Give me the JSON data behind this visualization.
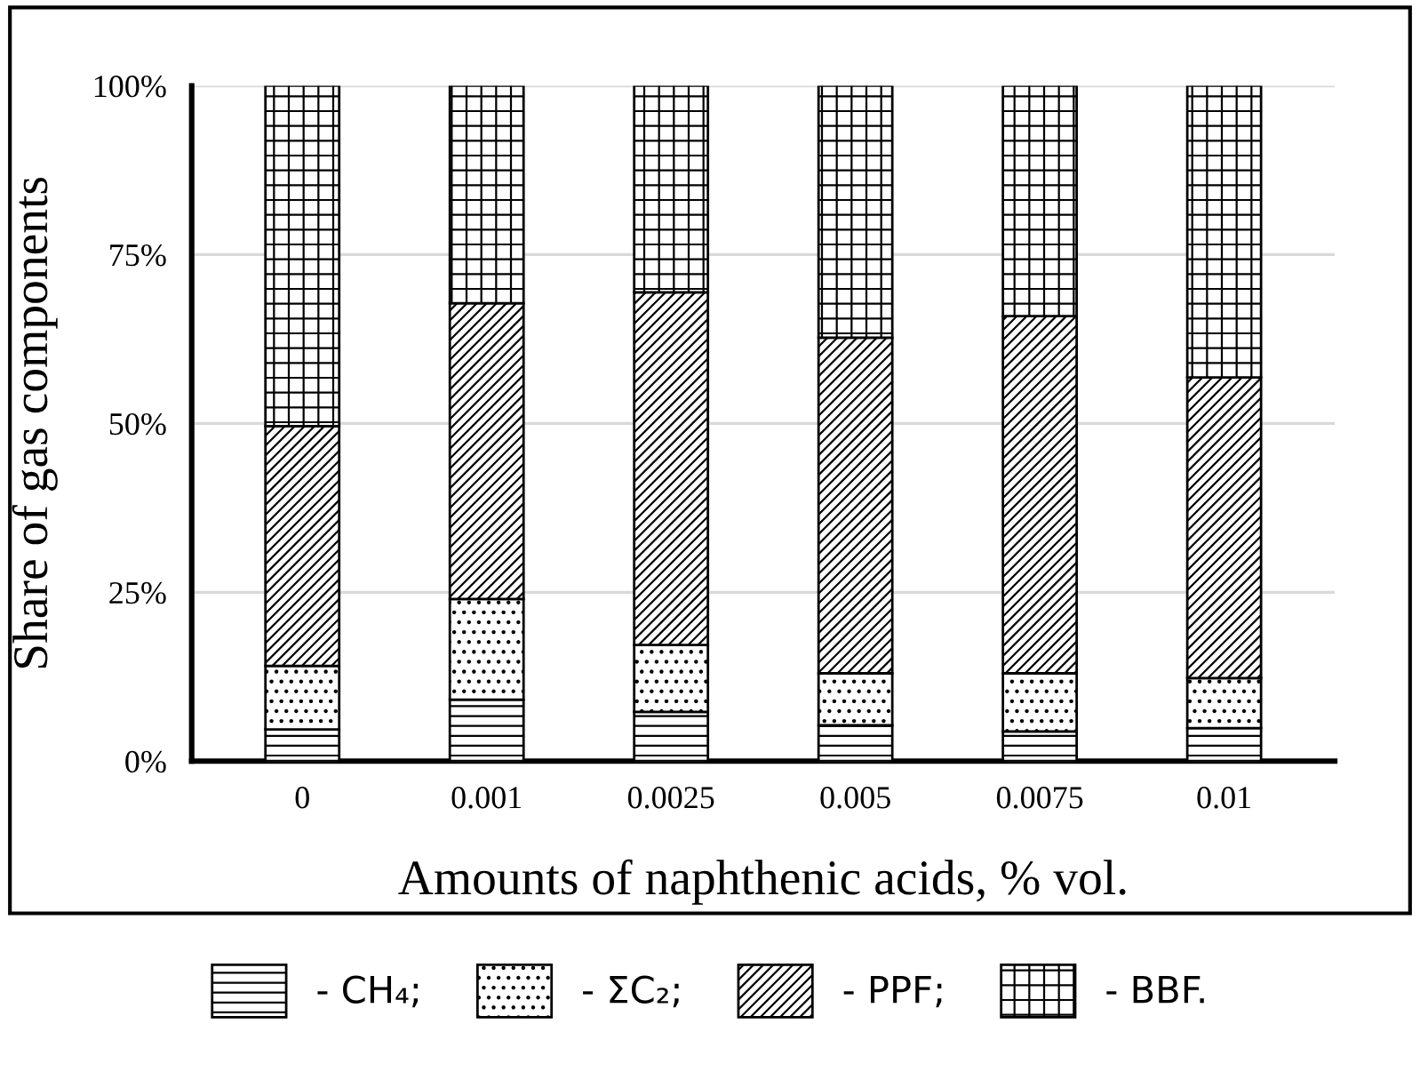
{
  "chart_data": {
    "type": "bar",
    "stacked": true,
    "xlabel": "Amounts of naphthenic acids, % vol.",
    "ylabel": "Share of gas components",
    "categories": [
      "0",
      "0.001",
      "0.0025",
      "0.005",
      "0.0075",
      "0.01"
    ],
    "series": [
      {
        "name": "- CH₄;",
        "color": "#000000",
        "values": [
          4.7,
          9.1,
          7.3,
          5.3,
          4.4,
          4.9
        ]
      },
      {
        "name": "- ΣC₂;",
        "color": "#000000",
        "values": [
          9.4,
          14.9,
          9.9,
          7.7,
          8.6,
          7.4
        ]
      },
      {
        "name": "- PPF;",
        "color": "#000000",
        "values": [
          35.5,
          43.8,
          52.2,
          49.7,
          52.9,
          44.5
        ]
      },
      {
        "name": "- BBF.",
        "color": "#000000",
        "values": [
          50.4,
          32.2,
          30.6,
          37.3,
          34.1,
          43.2
        ]
      }
    ],
    "ylim": [
      0,
      100
    ],
    "yticks": [
      {
        "value": 0,
        "label": "0%"
      },
      {
        "value": 25,
        "label": "25%"
      },
      {
        "value": 50,
        "label": "50%"
      },
      {
        "value": 75,
        "label": "75%"
      },
      {
        "value": 100,
        "label": "100%"
      }
    ],
    "grid": "y",
    "legend": "bottom"
  }
}
